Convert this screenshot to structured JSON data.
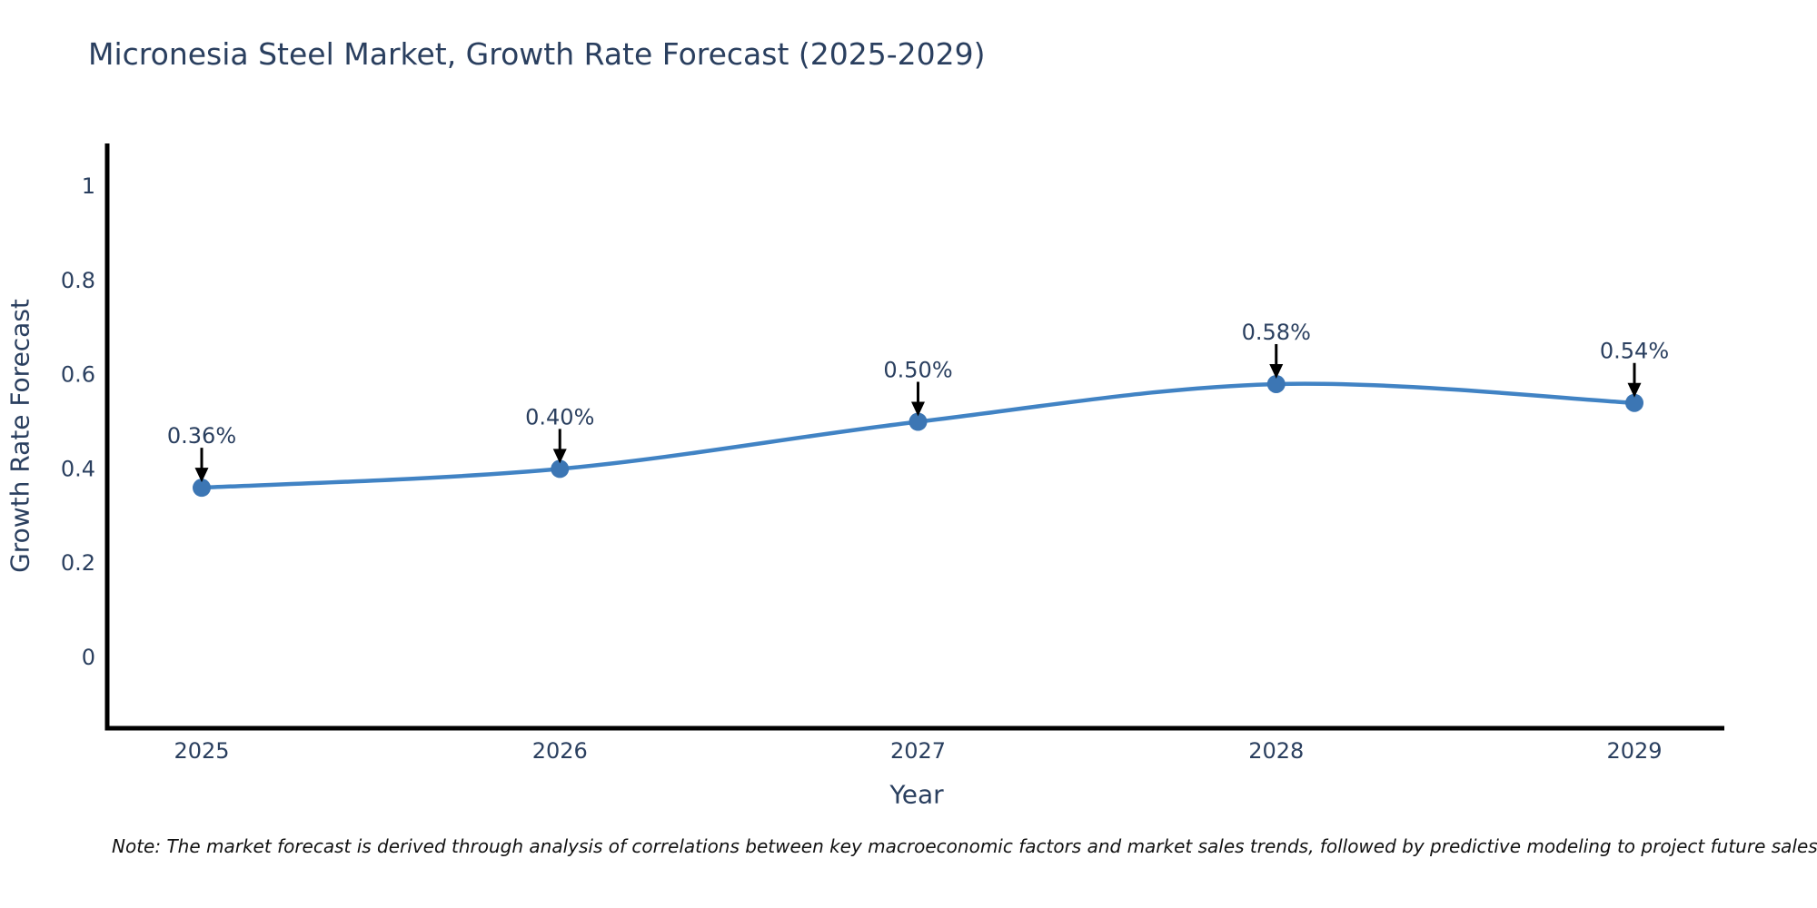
{
  "note": "Note: The market forecast is derived through analysis of correlations between key macroeconomic factors and market sales trends, followed by predictive modeling to project future sales",
  "chart_data": {
    "type": "line",
    "title": "Micronesia Steel Market, Growth Rate Forecast (2025-2029)",
    "xlabel": "Year",
    "ylabel": "Growth Rate Forecast",
    "categories": [
      "2025",
      "2026",
      "2027",
      "2028",
      "2029"
    ],
    "series": [
      {
        "name": "Growth Rate Forecast",
        "values": [
          0.36,
          0.4,
          0.5,
          0.58,
          0.54
        ]
      }
    ],
    "point_labels": [
      "0.36%",
      "0.40%",
      "0.50%",
      "0.58%",
      "0.54%"
    ],
    "ytick_labels": [
      "0",
      "0.2",
      "0.4",
      "0.6",
      "0.8",
      "1"
    ],
    "ytick_values": [
      0,
      0.2,
      0.4,
      0.6,
      0.8,
      1
    ],
    "ylim": [
      -0.15,
      1.09
    ],
    "grid": false,
    "legend_position": "none",
    "line_shape": "spline",
    "annotation_arrows": "down",
    "colors": {
      "line": "#4183c4",
      "marker": "#3c76b4",
      "axis": "#000000",
      "text": "#2a3f5f",
      "annotation_arrow": "#000000",
      "note_text": "#111111",
      "background": "#ffffff"
    }
  }
}
